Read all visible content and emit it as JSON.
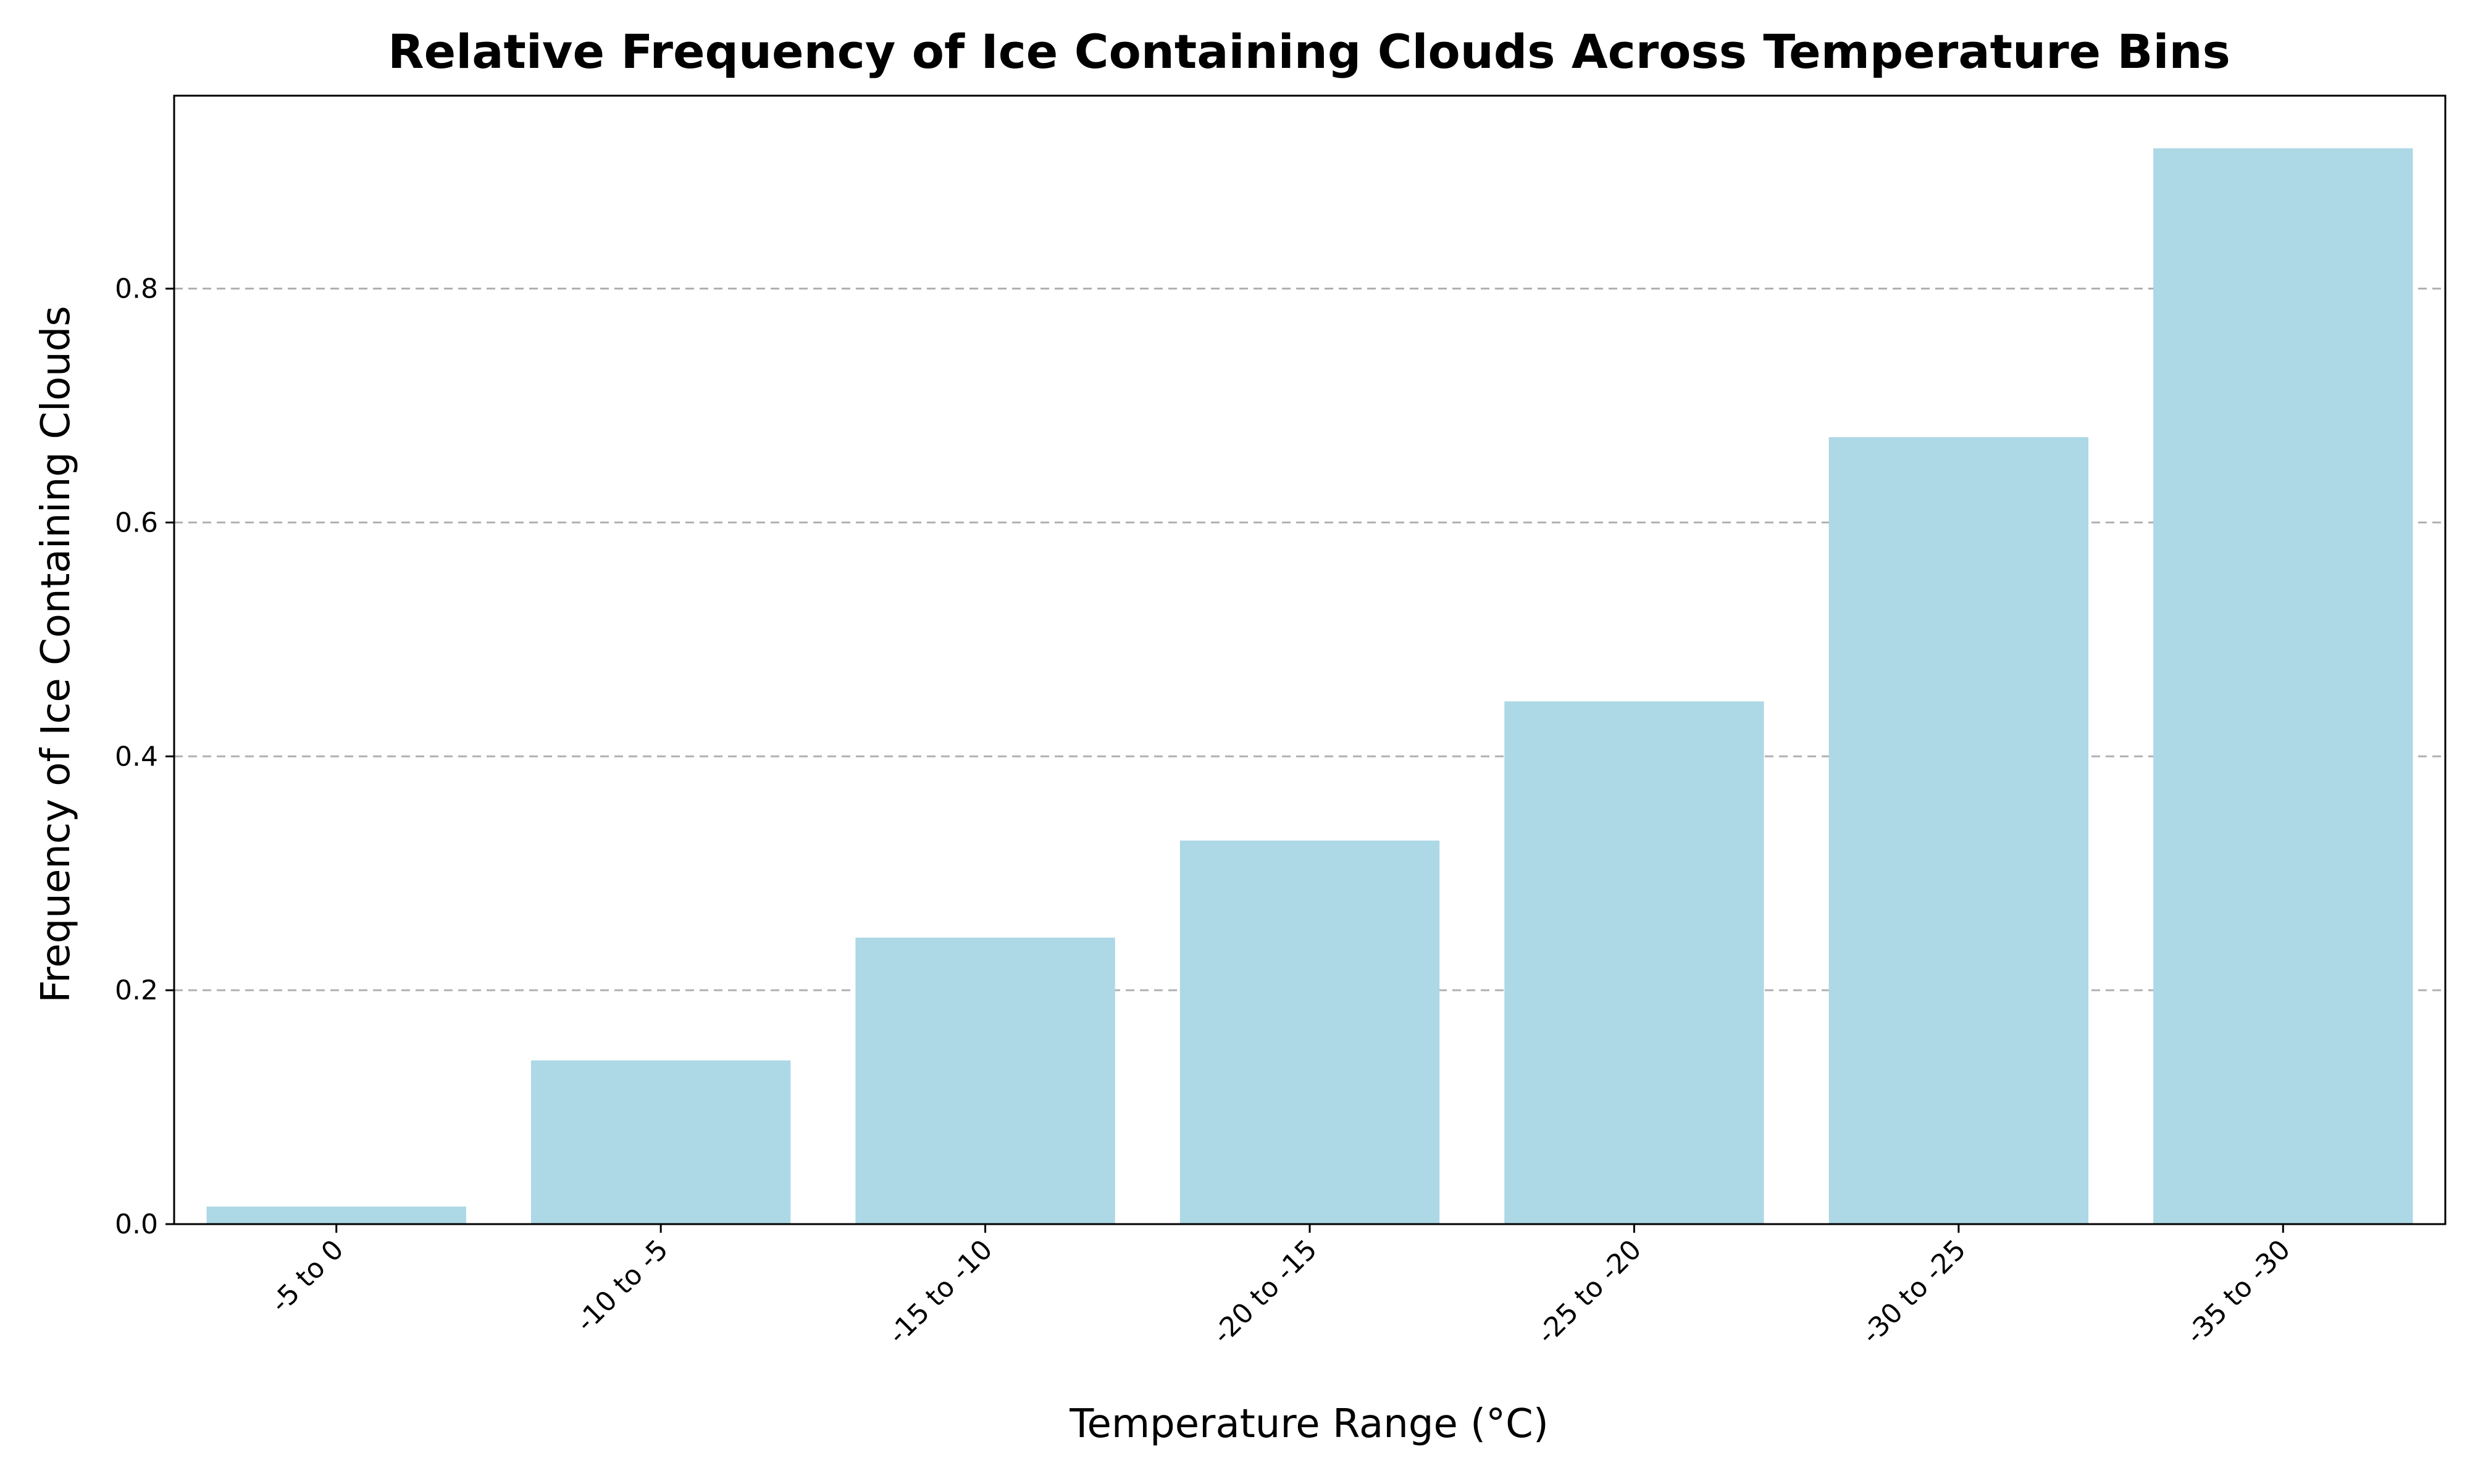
{
  "chart_data": {
    "type": "bar",
    "title": "Relative Frequency of Ice Containing Clouds Across Temperature Bins",
    "xlabel": "Temperature Range (°C)",
    "ylabel": "Frequency of Ice Containing Clouds",
    "categories": [
      "-5 to 0",
      "-10 to -5",
      "-15 to -10",
      "-20 to -15",
      "-25 to -20",
      "-30 to -25",
      "-35 to -30"
    ],
    "values": [
      0.015,
      0.14,
      0.245,
      0.328,
      0.447,
      0.673,
      0.92
    ],
    "ylim": [
      0,
      0.965
    ],
    "yticks": [
      "0.0",
      "0.2",
      "0.4",
      "0.6",
      "0.8"
    ],
    "grid": "y-dashed",
    "bar_color": "#add8e6"
  }
}
